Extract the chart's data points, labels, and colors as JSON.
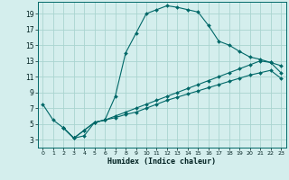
{
  "title": "",
  "xlabel": "Humidex (Indice chaleur)",
  "bg_color": "#d4eeed",
  "grid_color": "#aad4d0",
  "line_color": "#006868",
  "xlim": [
    -0.5,
    23.5
  ],
  "ylim": [
    2.0,
    20.5
  ],
  "yticks": [
    3,
    5,
    7,
    9,
    11,
    13,
    15,
    17,
    19
  ],
  "xticks": [
    0,
    1,
    2,
    3,
    4,
    5,
    6,
    7,
    8,
    9,
    10,
    11,
    12,
    13,
    14,
    15,
    16,
    17,
    18,
    19,
    20,
    21,
    22,
    23
  ],
  "curve1_x": [
    0,
    1,
    2,
    3,
    4,
    5,
    6,
    7,
    8,
    9,
    10,
    11,
    12,
    13,
    14,
    15,
    16,
    17,
    18,
    19,
    20,
    21,
    22,
    23
  ],
  "curve1_y": [
    7.5,
    5.5,
    4.5,
    3.2,
    3.5,
    5.2,
    5.5,
    8.5,
    14.0,
    16.5,
    19.0,
    19.5,
    20.0,
    19.8,
    19.5,
    19.2,
    17.5,
    15.5,
    15.0,
    14.2,
    13.5,
    13.2,
    12.8,
    12.4
  ],
  "curve2_x": [
    2,
    3,
    4,
    5,
    6,
    7,
    8,
    9,
    10,
    11,
    12,
    13,
    14,
    15,
    16,
    17,
    18,
    19,
    20,
    21,
    22,
    23
  ],
  "curve2_y": [
    4.5,
    3.2,
    4.2,
    5.2,
    5.5,
    6.0,
    6.5,
    7.0,
    7.5,
    8.0,
    8.5,
    9.0,
    9.5,
    10.0,
    10.5,
    11.0,
    11.5,
    12.0,
    12.5,
    13.0,
    12.8,
    11.5
  ],
  "curve3_x": [
    2,
    3,
    4,
    5,
    6,
    7,
    8,
    9,
    10,
    11,
    12,
    13,
    14,
    15,
    16,
    17,
    18,
    19,
    20,
    21,
    22,
    23
  ],
  "curve3_y": [
    4.5,
    3.2,
    4.2,
    5.2,
    5.5,
    5.8,
    6.2,
    6.5,
    7.0,
    7.5,
    8.0,
    8.4,
    8.8,
    9.2,
    9.6,
    10.0,
    10.4,
    10.8,
    11.2,
    11.5,
    11.8,
    10.8
  ]
}
